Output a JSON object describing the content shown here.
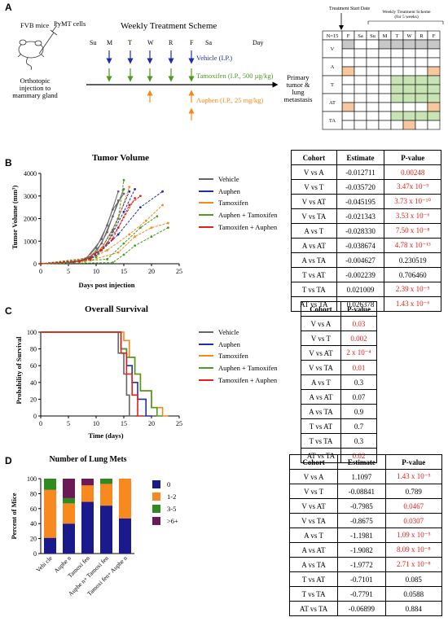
{
  "panel_labels": {
    "a": "A",
    "b": "B",
    "c": "C",
    "d": "D"
  },
  "panel_a": {
    "mouse_label": "FVB mice",
    "cells_label": "PyMT cells",
    "injection_label": [
      "Orthotopic",
      "injection to",
      "mammary gland"
    ],
    "scheme_title": "Weekly Treatment Scheme",
    "day_headers": [
      "Su",
      "M",
      "T",
      "W",
      "R",
      "F",
      "Sa",
      "Day"
    ],
    "vehicle_label": "Vehicle (I.P.)",
    "tamoxifen_label": "Tamoxifen (I.P., 500 µg/kg)",
    "auphen_label": "Auphen (I.P., 25 mg/kg)",
    "outcome_label": [
      "Primary",
      "tumor &",
      "lung",
      "metastasis"
    ],
    "colors": {
      "vehicle": "#1f2fa6",
      "tamoxifen": "#4e9a22",
      "auphen": "#f28b1b"
    }
  },
  "schedule_table": {
    "start_label": "Treatment Start Date",
    "weekly_label": [
      "Weekly Treatment Scheme",
      "(for 5 weeks)"
    ],
    "header": [
      "N=15",
      "F",
      "Sa",
      "Su",
      "M",
      "T",
      "W",
      "R",
      "F"
    ],
    "rows": [
      "V",
      "A",
      "T",
      "AT",
      "TA"
    ],
    "colors": {
      "gray": "#c8c8c8",
      "orange": "#f7c7a0",
      "green": "#c9e4b4"
    }
  },
  "panel_b": {
    "chart_data": {
      "type": "line",
      "title": "Tumor Volume",
      "xlabel": "Days post injection",
      "ylabel": "Tumor Volume (mm³)",
      "xlim": [
        0,
        25
      ],
      "ylim": [
        0,
        4000
      ],
      "xticks": [
        "0",
        "5",
        "10",
        "15",
        "20",
        "25"
      ],
      "yticks": [
        "0",
        "1000",
        "2000",
        "3000",
        "4000"
      ],
      "legend_position": "right",
      "series": [
        {
          "name": "Vehicle",
          "color": "#666666",
          "dashed": false,
          "curves": [
            [
              [
                0,
                0
              ],
              [
                5,
                60
              ],
              [
                8,
                200
              ],
              [
                10,
                700
              ],
              [
                12,
                1700
              ],
              [
                14,
                3200
              ]
            ],
            [
              [
                0,
                0
              ],
              [
                5,
                50
              ],
              [
                8,
                150
              ],
              [
                10,
                500
              ],
              [
                12,
                1400
              ],
              [
                14,
                2800
              ]
            ],
            [
              [
                0,
                0
              ],
              [
                6,
                80
              ],
              [
                9,
                300
              ],
              [
                11,
                900
              ],
              [
                13,
                2100
              ],
              [
                15,
                3300
              ]
            ],
            [
              [
                0,
                0
              ],
              [
                5,
                40
              ],
              [
                8,
                180
              ],
              [
                11,
                1100
              ],
              [
                13,
                2400
              ],
              [
                15,
                3100
              ]
            ]
          ]
        },
        {
          "name": "Auphen",
          "color": "#1f2fa6",
          "dashed": true,
          "curves": [
            [
              [
                0,
                0
              ],
              [
                6,
                70
              ],
              [
                9,
                250
              ],
              [
                12,
                900
              ],
              [
                15,
                2300
              ],
              [
                17,
                3300
              ]
            ],
            [
              [
                0,
                0
              ],
              [
                7,
                90
              ],
              [
                10,
                350
              ],
              [
                14,
                1300
              ],
              [
                18,
                2500
              ],
              [
                22,
                3200
              ]
            ],
            [
              [
                0,
                0
              ],
              [
                6,
                60
              ],
              [
                10,
                300
              ],
              [
                13,
                1500
              ],
              [
                16,
                3200
              ]
            ]
          ]
        },
        {
          "name": "Tamoxifen",
          "color": "#f28b1b",
          "dashed": true,
          "curves": [
            [
              [
                0,
                0
              ],
              [
                8,
                100
              ],
              [
                12,
                600
              ],
              [
                16,
                1300
              ],
              [
                19,
                1900
              ],
              [
                22,
                2600
              ]
            ],
            [
              [
                0,
                0
              ],
              [
                9,
                150
              ],
              [
                14,
                500
              ],
              [
                17,
                1200
              ],
              [
                20,
                1600
              ],
              [
                23,
                1800
              ]
            ],
            [
              [
                0,
                0
              ],
              [
                7,
                120
              ],
              [
                11,
                700
              ],
              [
                14,
                2000
              ],
              [
                16,
                3400
              ]
            ]
          ]
        },
        {
          "name": "Auphen + Tamoxifen",
          "color": "#4e9a22",
          "dashed": true,
          "curves": [
            [
              [
                0,
                0
              ],
              [
                13,
                50
              ],
              [
                15,
                400
              ],
              [
                17,
                800
              ],
              [
                20,
                1200
              ],
              [
                23,
                1600
              ]
            ],
            [
              [
                0,
                0
              ],
              [
                10,
                300
              ],
              [
                12,
                900
              ],
              [
                14,
                2000
              ],
              [
                15,
                3700
              ]
            ],
            [
              [
                0,
                0
              ],
              [
                12,
                200
              ],
              [
                15,
                900
              ],
              [
                18,
                1600
              ],
              [
                21,
                2100
              ]
            ]
          ]
        },
        {
          "name": "Tamoxifen + Auphen",
          "color": "#e0201b",
          "dashed": true,
          "curves": [
            [
              [
                0,
                0
              ],
              [
                7,
                100
              ],
              [
                11,
                600
              ],
              [
                14,
                1600
              ],
              [
                17,
                2900
              ]
            ],
            [
              [
                0,
                0
              ],
              [
                9,
                200
              ],
              [
                13,
                1100
              ],
              [
                16,
                2600
              ],
              [
                18,
                3000
              ]
            ]
          ]
        }
      ]
    },
    "table": {
      "headers": [
        "Cohort",
        "Estimate",
        "P-value"
      ],
      "rows": [
        {
          "cohort": "V vs A",
          "estimate": "-0.012711",
          "p": "0.00248",
          "sig": true
        },
        {
          "cohort": "V vs T",
          "estimate": "-0.035720",
          "p": "3.47x 10⁻⁹",
          "sig": true
        },
        {
          "cohort": "V vs AT",
          "estimate": "-0.045195",
          "p": "3.73 x 10⁻¹⁰",
          "sig": true
        },
        {
          "cohort": "V vs TA",
          "estimate": "-0.021343",
          "p": "3.53 x 10⁻⁶",
          "sig": true
        },
        {
          "cohort": "A vs T",
          "estimate": "-0.028330",
          "p": "7.50 x 10⁻⁸",
          "sig": true
        },
        {
          "cohort": "A vs AT",
          "estimate": "-0.038674",
          "p": "4.78 x 10⁻¹³",
          "sig": true
        },
        {
          "cohort": "A vs TA",
          "estimate": "-0.004627",
          "p": "0.230519",
          "sig": false
        },
        {
          "cohort": "T vs AT",
          "estimate": "-0.002239",
          "p": "0.706460",
          "sig": false
        },
        {
          "cohort": "T vs TA",
          "estimate": "0.021009",
          "p": "2.39 x 10⁻⁵",
          "sig": true
        },
        {
          "cohort": "AT vs TA",
          "estimate": "0.026378",
          "p": "1.43 x 10⁻⁶",
          "sig": true
        }
      ]
    }
  },
  "panel_c": {
    "chart_data": {
      "type": "line",
      "title": "Overall Survival",
      "xlabel": "Time (days)",
      "ylabel": "Probability of Survival",
      "xlim": [
        0,
        25
      ],
      "ylim": [
        0,
        100
      ],
      "xticks": [
        "0",
        "5",
        "10",
        "15",
        "20",
        "25"
      ],
      "yticks": [
        "0",
        "20",
        "40",
        "60",
        "80",
        "100"
      ],
      "legend_position": "right",
      "series": [
        {
          "name": "Vehicle",
          "color": "#666666",
          "points": [
            [
              0,
              100
            ],
            [
              14,
              100
            ],
            [
              14,
              75
            ],
            [
              15,
              75
            ],
            [
              15,
              50
            ],
            [
              15.5,
              50
            ],
            [
              15.5,
              25
            ],
            [
              16,
              25
            ],
            [
              16,
              0
            ],
            [
              17,
              0
            ]
          ]
        },
        {
          "name": "Auphen",
          "color": "#1f2fa6",
          "points": [
            [
              0,
              100
            ],
            [
              14.5,
              100
            ],
            [
              14.5,
              80
            ],
            [
              15.5,
              80
            ],
            [
              15.5,
              60
            ],
            [
              16.5,
              60
            ],
            [
              16.5,
              40
            ],
            [
              17.5,
              40
            ],
            [
              17.5,
              20
            ],
            [
              19,
              20
            ],
            [
              19,
              0
            ],
            [
              20,
              0
            ]
          ]
        },
        {
          "name": "Tamoxifen",
          "color": "#f28b1b",
          "points": [
            [
              0,
              100
            ],
            [
              15,
              100
            ],
            [
              15,
              90
            ],
            [
              16,
              90
            ],
            [
              16,
              70
            ],
            [
              17,
              70
            ],
            [
              17,
              50
            ],
            [
              18,
              50
            ],
            [
              18,
              30
            ],
            [
              20,
              30
            ],
            [
              20,
              10
            ],
            [
              22,
              10
            ],
            [
              22,
              0
            ],
            [
              23,
              0
            ]
          ]
        },
        {
          "name": "Auphen + Tamoxifen",
          "color": "#4e9a22",
          "points": [
            [
              0,
              100
            ],
            [
              14.5,
              100
            ],
            [
              14.5,
              80
            ],
            [
              15.5,
              80
            ],
            [
              15.5,
              70
            ],
            [
              17,
              70
            ],
            [
              17,
              50
            ],
            [
              18,
              50
            ],
            [
              18,
              30
            ],
            [
              20,
              30
            ],
            [
              20,
              10
            ],
            [
              21,
              10
            ],
            [
              21,
              0
            ],
            [
              22,
              0
            ]
          ]
        },
        {
          "name": "Tamoxifen + Auphen",
          "color": "#e0201b",
          "points": [
            [
              0,
              100
            ],
            [
              14.5,
              100
            ],
            [
              14.5,
              75
            ],
            [
              15.5,
              75
            ],
            [
              15.5,
              50
            ],
            [
              16.5,
              50
            ],
            [
              16.5,
              25
            ],
            [
              17.5,
              25
            ],
            [
              17.5,
              0
            ],
            [
              18.5,
              0
            ]
          ]
        }
      ]
    },
    "table": {
      "headers": [
        "Cohort",
        "P-value"
      ],
      "rows": [
        {
          "cohort": "V vs A",
          "p": "0.03",
          "sig": true
        },
        {
          "cohort": "V vs T",
          "p": "0.002",
          "sig": true
        },
        {
          "cohort": "V vs AT",
          "p": "2 x 10⁻⁴",
          "sig": true
        },
        {
          "cohort": "V vs TA",
          "p": "0.01",
          "sig": true
        },
        {
          "cohort": "A vs T",
          "p": "0.3",
          "sig": false
        },
        {
          "cohort": "A vs AT",
          "p": "0.07",
          "sig": false
        },
        {
          "cohort": "A vs TA",
          "p": "0.9",
          "sig": false
        },
        {
          "cohort": "T vs AT",
          "p": "0.7",
          "sig": false
        },
        {
          "cohort": "T vs TA",
          "p": "0.3",
          "sig": false
        },
        {
          "cohort": "AT vs TA",
          "p": "0.02",
          "sig": true
        }
      ]
    }
  },
  "panel_d": {
    "chart_data": {
      "type": "bar",
      "title": "Number of Lung Mets",
      "xlabel": "",
      "ylabel": "Percent of Mice",
      "ylim": [
        0,
        100
      ],
      "yticks": [
        "0",
        "20",
        "40",
        "60",
        "80",
        "100"
      ],
      "categories": [
        "Vehicle",
        "Auphen",
        "Tamoxifen",
        "Auphen + Tamoxifen",
        "Tamoxifen + Auphen"
      ],
      "category_labels": [
        "Vehi cle",
        "Auphe n",
        "Tamoxi fen",
        "Auphe n+ Tamoxi fen",
        "Tamoxi fen+ Auphe n"
      ],
      "stacked": true,
      "legend_position": "right",
      "series": [
        {
          "name": "0",
          "color": "#1a1a8c",
          "values": [
            21,
            40,
            69,
            64,
            47
          ]
        },
        {
          "name": "1-2",
          "color": "#f7891f",
          "values": [
            64,
            27,
            22,
            29,
            53
          ]
        },
        {
          "name": "3-5",
          "color": "#2f8a1f",
          "values": [
            15,
            7,
            0,
            7,
            0
          ]
        },
        {
          "name": ">6+",
          "color": "#6b1a55",
          "values": [
            0,
            26,
            9,
            0,
            0
          ]
        }
      ]
    },
    "table": {
      "headers": [
        "Cohort",
        "Estimate",
        "P-value"
      ],
      "rows": [
        {
          "cohort": "V vs A",
          "estimate": "1.1097",
          "p": "1.43 x 10⁻⁵",
          "sig": true
        },
        {
          "cohort": "V vs T",
          "estimate": "-0.08841",
          "p": "0.789",
          "sig": false
        },
        {
          "cohort": "V vs AT",
          "estimate": "-0.7985",
          "p": "0.0467",
          "sig": true
        },
        {
          "cohort": "V vs TA",
          "estimate": "-0.8675",
          "p": "0.0307",
          "sig": true
        },
        {
          "cohort": "A vs T",
          "estimate": "-1.1981",
          "p": "1.09 x 10⁻⁵",
          "sig": true
        },
        {
          "cohort": "A vs AT",
          "estimate": "-1.9082",
          "p": "8.09 x 10⁻⁸",
          "sig": true
        },
        {
          "cohort": "A vs TA",
          "estimate": "-1.9772",
          "p": "2.71 x 10⁻⁸",
          "sig": true
        },
        {
          "cohort": "T vs AT",
          "estimate": "-0.7101",
          "p": "0.085",
          "sig": false
        },
        {
          "cohort": "T vs TA",
          "estimate": "-0.7791",
          "p": "0.0588",
          "sig": false
        },
        {
          "cohort": "AT vs TA",
          "estimate": "-0.06899",
          "p": "0.884",
          "sig": false
        }
      ]
    }
  }
}
